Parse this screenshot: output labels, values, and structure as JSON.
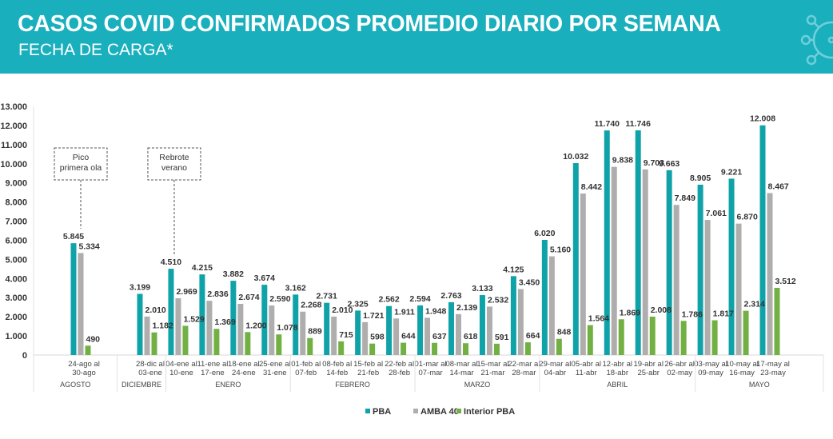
{
  "header": {
    "title": "CASOS COVID CONFIRMADOS PROMEDIO DIARIO POR SEMANA",
    "subtitle": "FECHA DE CARGA*",
    "icon": "virus-icon"
  },
  "colors": {
    "header": "#19afbd",
    "PBA": "#0fa3a9",
    "AMBA 40": "#b0adad",
    "Interior PBA": "#72b043"
  },
  "chart_data": {
    "type": "bar",
    "ylim": [
      0,
      13000
    ],
    "yticks": [
      "0",
      "1.000",
      "2.000",
      "3.000",
      "4.000",
      "5.000",
      "6.000",
      "7.000",
      "8.000",
      "9.000",
      "10.000",
      "11.000",
      "12.000",
      "13.000"
    ],
    "grid": false,
    "legend": "bottom",
    "categories": [
      [
        "24-ago al",
        "30-ago"
      ],
      [
        "28-dic al",
        "03-ene"
      ],
      [
        "04-ene al",
        "10-ene"
      ],
      [
        "11-ene al",
        "17-ene"
      ],
      [
        "18-ene al",
        "24-ene"
      ],
      [
        "25-ene al",
        "31-ene"
      ],
      [
        "01-feb al",
        "07-feb"
      ],
      [
        "08-feb al",
        "14-feb"
      ],
      [
        "15-feb al",
        "21-feb"
      ],
      [
        "22-feb al",
        "28-feb"
      ],
      [
        "01-mar al",
        "07-mar"
      ],
      [
        "08-mar al",
        "14-mar"
      ],
      [
        "15-mar al",
        "21-mar"
      ],
      [
        "22-mar al",
        "28-mar"
      ],
      [
        "29-mar al",
        "04-abr"
      ],
      [
        "05-abr al",
        "11-abr"
      ],
      [
        "12-abr al",
        "18-abr"
      ],
      [
        "19-abr al",
        "25-abr"
      ],
      [
        "26-abr al",
        "02-may"
      ],
      [
        "03-may al",
        "09-may"
      ],
      [
        "10-may al",
        "16-may"
      ],
      [
        "17-may al",
        "23-may"
      ]
    ],
    "months": [
      {
        "label": "AGOSTO",
        "from": 0,
        "to": 0
      },
      {
        "label": "DICIEMBRE",
        "from": 1,
        "to": 1
      },
      {
        "label": "ENERO",
        "from": 2,
        "to": 5
      },
      {
        "label": "FEBRERO",
        "from": 6,
        "to": 9
      },
      {
        "label": "MARZO",
        "from": 10,
        "to": 13
      },
      {
        "label": "ABRIL",
        "from": 14,
        "to": 18
      },
      {
        "label": "MAYO",
        "from": 19,
        "to": 21
      }
    ],
    "series": [
      {
        "name": "PBA",
        "values": [
          5845,
          3199,
          4510,
          4215,
          3882,
          3674,
          3162,
          2731,
          2325,
          2562,
          2594,
          2763,
          3133,
          4125,
          6020,
          10032,
          11740,
          11746,
          9663,
          8905,
          9221,
          12008
        ]
      },
      {
        "name": "AMBA 40",
        "values": [
          5334,
          2010,
          2969,
          2836,
          2674,
          2590,
          2268,
          2010,
          1721,
          1911,
          1948,
          2139,
          2532,
          3450,
          5160,
          8442,
          9838,
          9703,
          7849,
          7061,
          6870,
          8467
        ]
      },
      {
        "name": "Interior PBA",
        "values": [
          490,
          1182,
          1529,
          1369,
          1200,
          1078,
          889,
          715,
          598,
          644,
          637,
          618,
          591,
          664,
          848,
          1564,
          1869,
          2008,
          1786,
          1817,
          2314,
          3512
        ]
      }
    ],
    "annotations": [
      {
        "lines": [
          "Pico",
          "primera ola"
        ],
        "category": 0
      },
      {
        "lines": [
          "Rebrote",
          "verano"
        ],
        "category": 2
      }
    ]
  }
}
